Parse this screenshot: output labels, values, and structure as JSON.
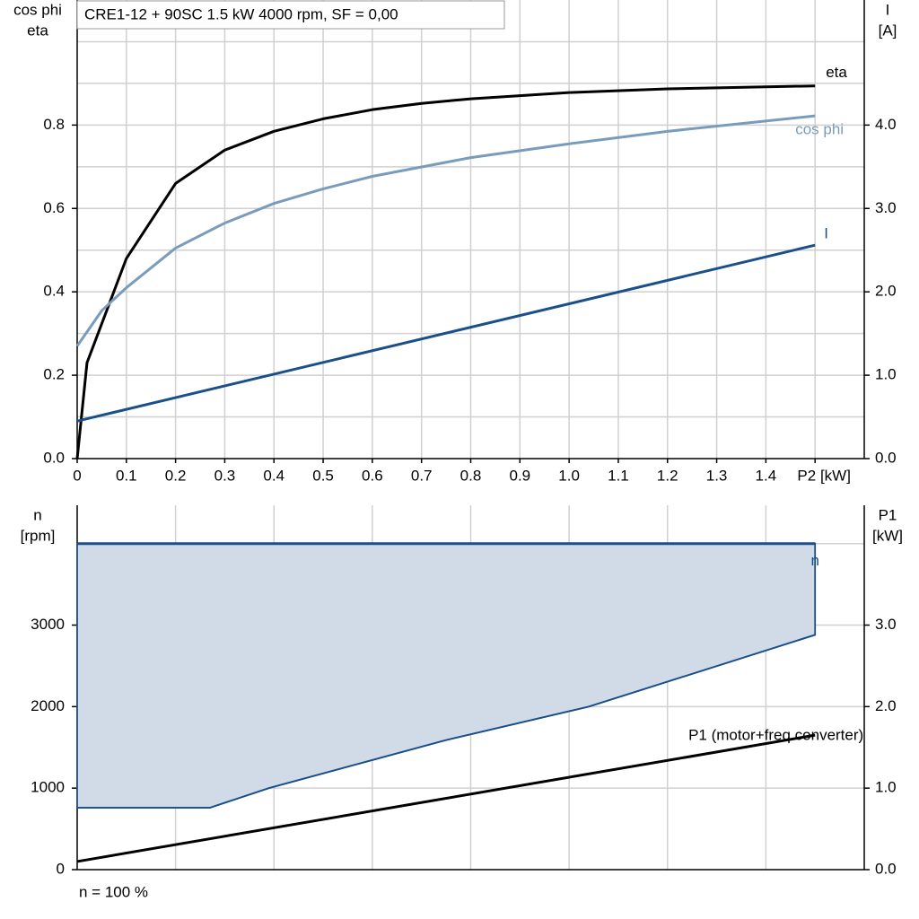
{
  "chart_data": [
    {
      "type": "line",
      "title": "CRE1-12 + 90SC   1.5 kW   4000 rpm, SF = 0,00",
      "ylabel": [
        "cos phi",
        "eta"
      ],
      "y2label": [
        "I",
        "[A]"
      ],
      "xlim": [
        0,
        1.6
      ],
      "ylim": [
        0,
        1.1
      ],
      "y2lim": [
        0,
        5.5
      ],
      "xticks": [
        {
          "value": 0,
          "label": "0"
        },
        0.1,
        0.2,
        0.3,
        0.4,
        0.5,
        0.6,
        0.7,
        0.8,
        0.9,
        {
          "value": 1,
          "label": "1.0"
        },
        1.1,
        1.2,
        1.3,
        1.4,
        {
          "value": 1.5,
          "label": "P2 [kW]"
        }
      ],
      "yticks": [
        {
          "value": 0,
          "label": "0.0"
        },
        0.2,
        0.4,
        0.6,
        0.8
      ],
      "y2ticks": [
        {
          "value": 0,
          "label": "0.0"
        },
        {
          "value": 1,
          "label": "1.0"
        },
        {
          "value": 2,
          "label": "2.0"
        },
        {
          "value": 3,
          "label": "3.0"
        },
        {
          "value": 4,
          "label": "4.0"
        }
      ],
      "xgrid": [
        0.1,
        0.2,
        0.3,
        0.4,
        0.5,
        0.6,
        0.7,
        0.8,
        0.9,
        1.0,
        1.1,
        1.2,
        1.3,
        1.4,
        1.5
      ],
      "ygrid": [
        0.1,
        0.2,
        0.3,
        0.4,
        0.5,
        0.6,
        0.7,
        0.8,
        0.9,
        1.0
      ],
      "series": [
        {
          "name": "eta",
          "color": "#000000",
          "x": [
            0,
            0.02,
            0.1,
            0.2,
            0.3,
            0.4,
            0.5,
            0.6,
            0.7,
            0.8,
            1.0,
            1.2,
            1.5
          ],
          "values": [
            0,
            0.23,
            0.48,
            0.66,
            0.74,
            0.785,
            0.815,
            0.837,
            0.852,
            0.863,
            0.878,
            0.887,
            0.894
          ]
        },
        {
          "name": "cos phi",
          "color": "#7a9cbc",
          "x": [
            0,
            0.05,
            0.1,
            0.2,
            0.3,
            0.4,
            0.5,
            0.6,
            0.8,
            1.0,
            1.2,
            1.5
          ],
          "values": [
            0.27,
            0.355,
            0.41,
            0.505,
            0.565,
            0.612,
            0.647,
            0.677,
            0.722,
            0.755,
            0.785,
            0.822
          ]
        },
        {
          "name": "I",
          "color": "#1a4f8a",
          "axis": "y2",
          "x": [
            0,
            1.5
          ],
          "values": [
            0.45,
            2.56
          ]
        }
      ]
    },
    {
      "type": "line",
      "annotation": "n = 100 %",
      "ylabel": [
        "n",
        "[rpm]"
      ],
      "y2label": [
        "P1",
        "[kW]"
      ],
      "xlim": [
        0,
        1.6
      ],
      "ylim": [
        0,
        4470
      ],
      "y2lim": [
        0,
        4.47
      ],
      "yticks": [
        0,
        1000,
        2000,
        3000
      ],
      "y2ticks": [
        {
          "value": 0,
          "label": "0.0"
        },
        {
          "value": 1,
          "label": "1.0"
        },
        {
          "value": 2,
          "label": "2.0"
        },
        {
          "value": 3,
          "label": "3.0"
        }
      ],
      "xgrid": [
        0.2,
        0.4,
        0.6,
        0.8,
        1.0,
        1.2,
        1.4
      ],
      "ygrid": [
        1000,
        2000,
        3000,
        4000
      ],
      "series": [
        {
          "name": "n",
          "color": "#1a4f8a",
          "fill": "#d0dbe7",
          "x": [
            0,
            1.5
          ],
          "values": [
            4000,
            4000
          ],
          "min_x": [
            0,
            0.27,
            0.39,
            0.75,
            1.04,
            1.5
          ],
          "min_values": [
            760,
            760,
            1000,
            1590,
            2000,
            2880
          ]
        },
        {
          "name": "P1 (motor+freq converter)",
          "color": "#000000",
          "axis": "y2",
          "x": [
            0,
            1.5
          ],
          "values": [
            0.1,
            1.65
          ]
        }
      ]
    }
  ]
}
